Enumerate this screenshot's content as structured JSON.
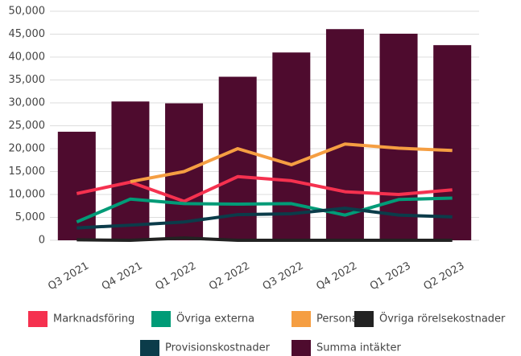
{
  "chart_data": {
    "type": "bar",
    "categories": [
      "Q3 2021",
      "Q4 2021",
      "Q1 2022",
      "Q2 2022",
      "Q3 2022",
      "Q4 2022",
      "Q1 2023",
      "Q2 2023"
    ],
    "series": [
      {
        "name": "Marknadsföring",
        "type": "line",
        "color": "#f5314f",
        "values": [
          10200,
          12700,
          8500,
          13900,
          13000,
          10600,
          10000,
          11000
        ]
      },
      {
        "name": "Övriga externa",
        "type": "line",
        "color": "#009b77",
        "values": [
          4000,
          9000,
          8000,
          7900,
          8000,
          5500,
          8900,
          9200
        ]
      },
      {
        "name": "Personal",
        "type": "line",
        "color": "#f59e42",
        "values": [
          null,
          12800,
          15000,
          20000,
          16500,
          21000,
          20100,
          19600
        ]
      },
      {
        "name": "Övriga rörelsekostnader",
        "type": "line",
        "color": "#222222",
        "values": [
          100,
          0,
          500,
          0,
          0,
          0,
          0,
          0
        ]
      },
      {
        "name": "Provisionskostnader",
        "type": "line",
        "color": "#0b3c4a",
        "values": [
          2700,
          3300,
          4000,
          5600,
          5800,
          7000,
          5500,
          5100
        ]
      },
      {
        "name": "Summa intäkter",
        "type": "bar",
        "color": "#4e0b2e",
        "values": [
          23700,
          30300,
          29900,
          35700,
          41000,
          46100,
          45100,
          42600
        ]
      }
    ],
    "ylim": [
      0,
      50000
    ],
    "yticks": [
      0,
      {
        "value": 5000,
        "label": "5,000"
      },
      {
        "value": 10000,
        "label": "10,000"
      },
      {
        "value": 15000,
        "label": "15,000"
      },
      {
        "value": 20000,
        "label": "20,000"
      },
      {
        "value": 25000,
        "label": "25,000"
      },
      {
        "value": 30000,
        "label": "30,000"
      },
      {
        "value": 35000,
        "label": "35,000"
      },
      {
        "value": 40000,
        "label": "40,000"
      },
      {
        "value": 45000,
        "label": "45,000"
      },
      {
        "value": 50000,
        "label": "50,000"
      }
    ],
    "grid": true
  }
}
